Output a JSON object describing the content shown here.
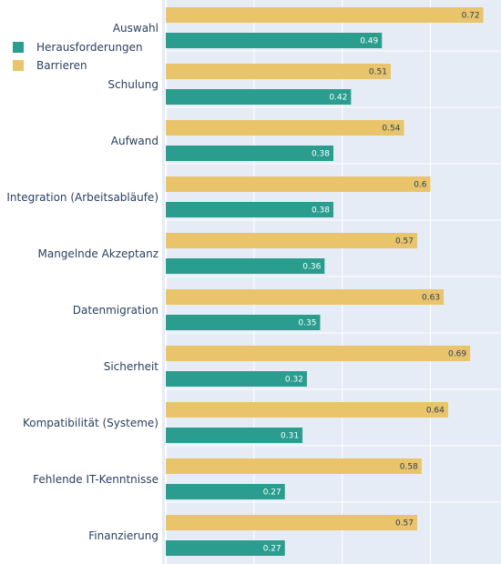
{
  "chart_data": {
    "type": "bar",
    "orientation": "horizontal",
    "categories": [
      "Auswahl",
      "Schulung",
      "Aufwand",
      "Integration (Arbeitsabläufe)",
      "Mangelnde Akzeptanz",
      "Datenmigration",
      "Sicherheit",
      "Kompatibilität (Systeme)",
      "Fehlende IT-Kenntnisse",
      "Finanzierung"
    ],
    "series": [
      {
        "name": "Herausforderungen",
        "color": "#2a9d8f",
        "values": [
          0.49,
          0.42,
          0.38,
          0.38,
          0.36,
          0.35,
          0.32,
          0.31,
          0.27,
          0.27
        ]
      },
      {
        "name": "Barrieren",
        "color": "#e9c46a",
        "values": [
          0.72,
          0.51,
          0.54,
          0.6,
          0.57,
          0.63,
          0.69,
          0.64,
          0.58,
          0.57
        ]
      }
    ],
    "xlim": [
      0,
      0.76
    ],
    "grid": true,
    "legend_position": "top-left",
    "plot_background": "#e5ecf6"
  }
}
